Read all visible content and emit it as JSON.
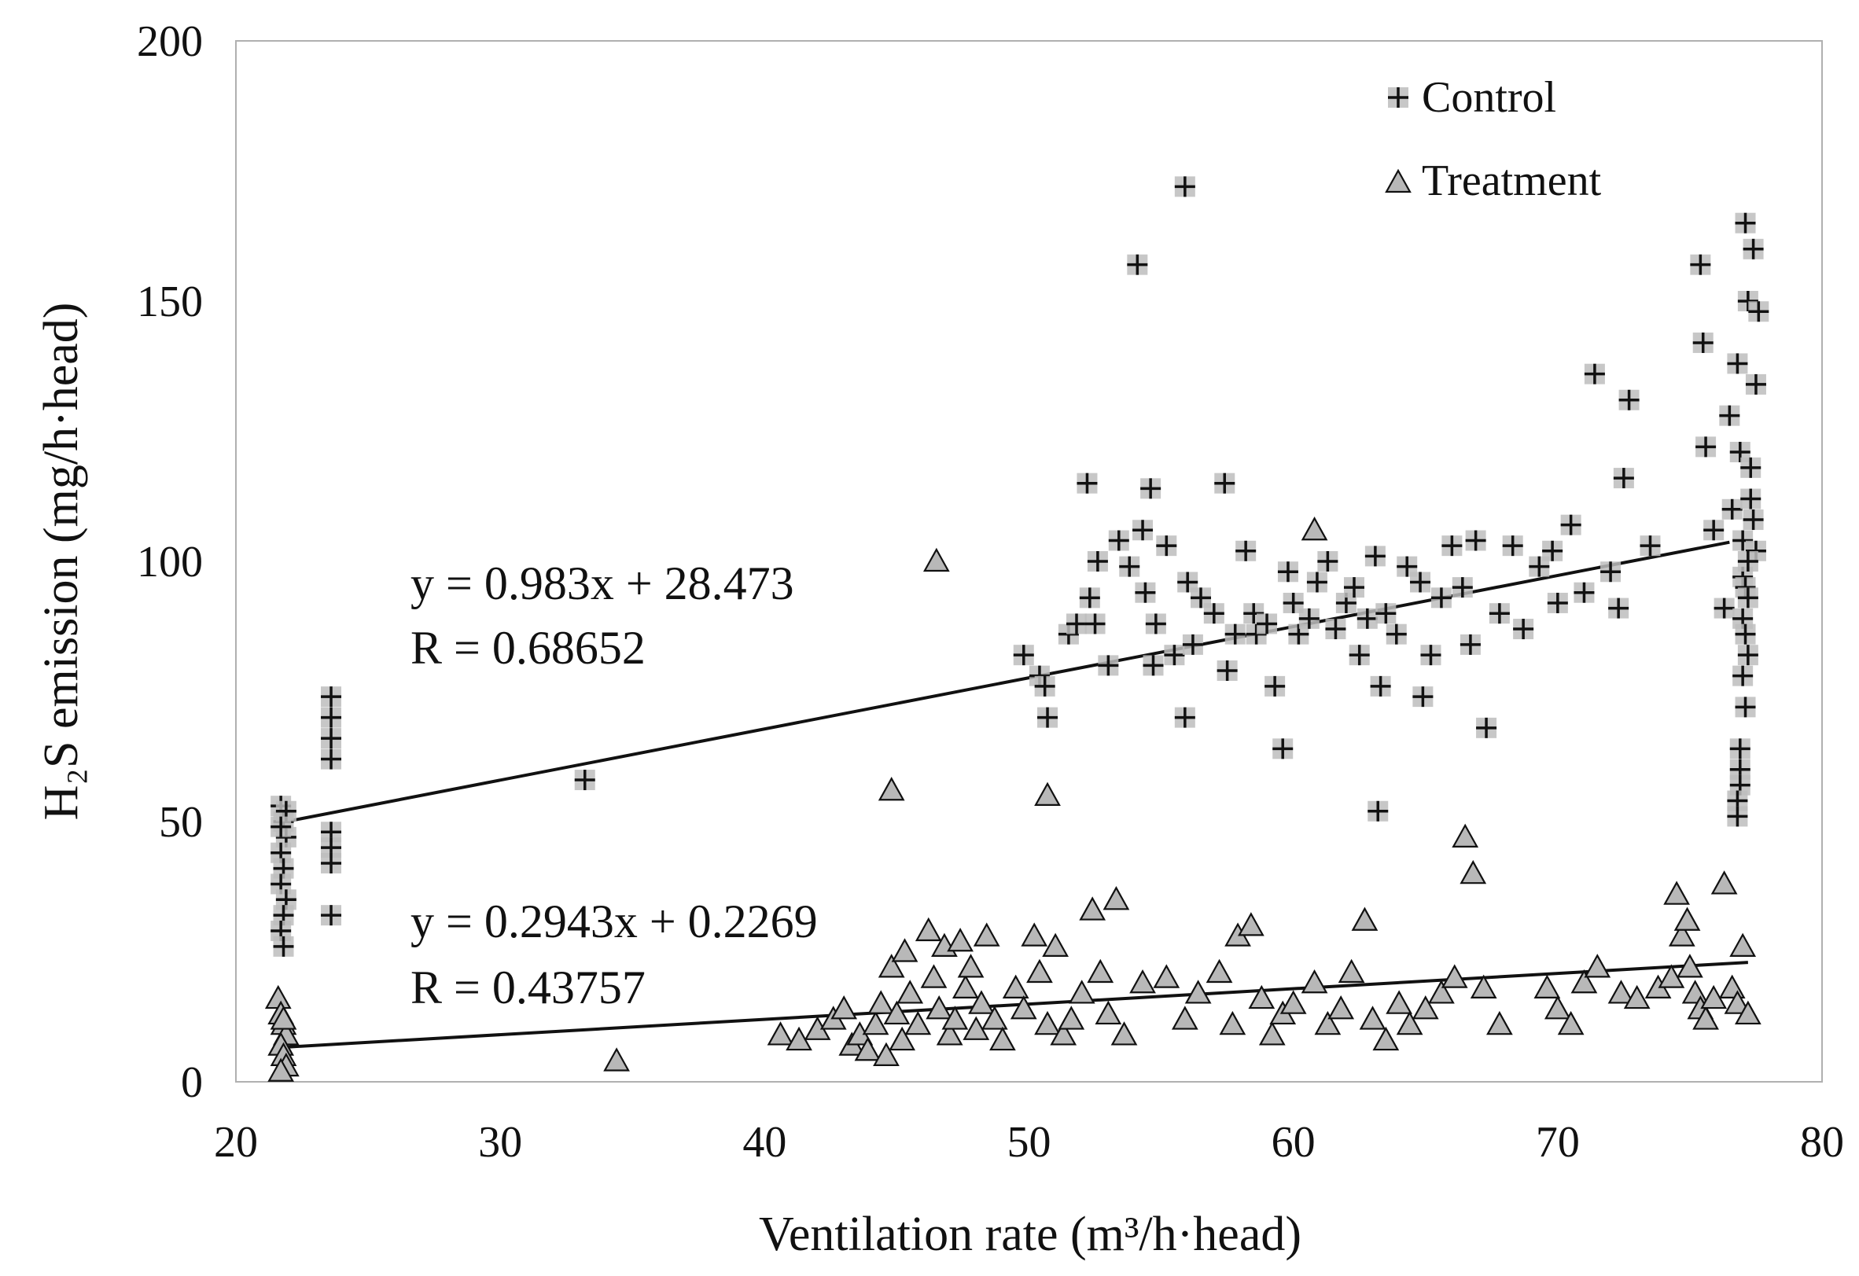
{
  "chart_data": {
    "type": "scatter",
    "title": "",
    "xlabel": "Ventilation rate (m³/h·head)",
    "ylabel": "H₂S emission (mg/h·head)",
    "xlim": [
      20,
      80
    ],
    "ylim": [
      0,
      200
    ],
    "xticks": [
      20,
      30,
      40,
      50,
      60,
      70,
      80
    ],
    "yticks": [
      0,
      50,
      100,
      150,
      200
    ],
    "grid": false,
    "legend_position": "top-right",
    "series": [
      {
        "name": "Control",
        "marker": "plus",
        "marker_color": "#111111",
        "marker_bg": "#bdbdbd",
        "points": [
          [
            21.7,
            53
          ],
          [
            21.8,
            50
          ],
          [
            21.9,
            47
          ],
          [
            21.7,
            44
          ],
          [
            21.8,
            41
          ],
          [
            21.7,
            38
          ],
          [
            21.9,
            35
          ],
          [
            21.8,
            32
          ],
          [
            21.7,
            29
          ],
          [
            21.8,
            26
          ],
          [
            21.9,
            52
          ],
          [
            21.7,
            49
          ],
          [
            23.6,
            74
          ],
          [
            23.6,
            70
          ],
          [
            23.6,
            66
          ],
          [
            23.6,
            62
          ],
          [
            23.6,
            48
          ],
          [
            23.6,
            45
          ],
          [
            23.6,
            42
          ],
          [
            23.6,
            32
          ],
          [
            33.2,
            58
          ],
          [
            49.8,
            82
          ],
          [
            50.4,
            78
          ],
          [
            50.6,
            76
          ],
          [
            50.7,
            70
          ],
          [
            51.5,
            86
          ],
          [
            51.8,
            88
          ],
          [
            52.2,
            115
          ],
          [
            52.3,
            93
          ],
          [
            52.5,
            88
          ],
          [
            52.6,
            100
          ],
          [
            53.0,
            80
          ],
          [
            53.4,
            104
          ],
          [
            53.8,
            99
          ],
          [
            54.1,
            157
          ],
          [
            54.3,
            106
          ],
          [
            54.4,
            94
          ],
          [
            54.6,
            114
          ],
          [
            54.7,
            80
          ],
          [
            54.8,
            88
          ],
          [
            55.2,
            103
          ],
          [
            55.5,
            82
          ],
          [
            55.9,
            172
          ],
          [
            55.9,
            70
          ],
          [
            56.0,
            96
          ],
          [
            56.2,
            84
          ],
          [
            56.5,
            93
          ],
          [
            57.0,
            90
          ],
          [
            57.4,
            115
          ],
          [
            57.5,
            79
          ],
          [
            57.8,
            86
          ],
          [
            58.2,
            102
          ],
          [
            58.5,
            90
          ],
          [
            58.6,
            86
          ],
          [
            59.0,
            88
          ],
          [
            59.3,
            76
          ],
          [
            59.6,
            64
          ],
          [
            59.8,
            98
          ],
          [
            60.0,
            92
          ],
          [
            60.2,
            86
          ],
          [
            60.6,
            89
          ],
          [
            60.9,
            96
          ],
          [
            61.3,
            100
          ],
          [
            61.6,
            87
          ],
          [
            62.0,
            92
          ],
          [
            62.3,
            95
          ],
          [
            62.5,
            82
          ],
          [
            62.8,
            89
          ],
          [
            63.1,
            101
          ],
          [
            63.2,
            52
          ],
          [
            63.3,
            76
          ],
          [
            63.5,
            90
          ],
          [
            63.9,
            86
          ],
          [
            64.3,
            99
          ],
          [
            64.8,
            96
          ],
          [
            64.9,
            74
          ],
          [
            65.2,
            82
          ],
          [
            65.6,
            93
          ],
          [
            66.0,
            103
          ],
          [
            66.4,
            95
          ],
          [
            66.7,
            84
          ],
          [
            66.9,
            104
          ],
          [
            67.3,
            68
          ],
          [
            67.8,
            90
          ],
          [
            68.3,
            103
          ],
          [
            68.7,
            87
          ],
          [
            69.3,
            99
          ],
          [
            69.8,
            102
          ],
          [
            70.0,
            92
          ],
          [
            70.5,
            107
          ],
          [
            71.0,
            94
          ],
          [
            71.4,
            136
          ],
          [
            72.0,
            98
          ],
          [
            72.3,
            91
          ],
          [
            72.5,
            116
          ],
          [
            72.7,
            131
          ],
          [
            73.5,
            103
          ],
          [
            75.4,
            157
          ],
          [
            75.5,
            142
          ],
          [
            75.6,
            122
          ],
          [
            75.9,
            106
          ],
          [
            76.3,
            91
          ],
          [
            76.5,
            128
          ],
          [
            76.6,
            110
          ],
          [
            76.8,
            138
          ],
          [
            76.9,
            121
          ],
          [
            77.0,
            104
          ],
          [
            77.1,
            165
          ],
          [
            77.2,
            150
          ],
          [
            77.3,
            118
          ],
          [
            77.4,
            160
          ],
          [
            77.5,
            134
          ],
          [
            77.6,
            148
          ],
          [
            77.0,
            97
          ],
          [
            77.1,
            95
          ],
          [
            77.2,
            93
          ],
          [
            77.0,
            89
          ],
          [
            77.1,
            86
          ],
          [
            77.2,
            82
          ],
          [
            77.0,
            78
          ],
          [
            77.1,
            72
          ],
          [
            76.9,
            64
          ],
          [
            76.9,
            60
          ],
          [
            76.9,
            57
          ],
          [
            76.8,
            54
          ],
          [
            76.8,
            51
          ],
          [
            77.3,
            112
          ],
          [
            77.4,
            108
          ],
          [
            77.5,
            102
          ],
          [
            77.2,
            100
          ]
        ]
      },
      {
        "name": "Treatment",
        "marker": "triangle",
        "marker_color": "#111111",
        "marker_fill": "#b8b8b8",
        "points": [
          [
            21.6,
            16
          ],
          [
            21.7,
            13
          ],
          [
            21.8,
            11
          ],
          [
            21.9,
            9
          ],
          [
            21.7,
            7
          ],
          [
            21.8,
            5
          ],
          [
            21.9,
            3
          ],
          [
            21.7,
            2
          ],
          [
            21.8,
            12
          ],
          [
            34.4,
            4
          ],
          [
            40.6,
            9
          ],
          [
            41.3,
            8
          ],
          [
            42.0,
            10
          ],
          [
            42.6,
            12
          ],
          [
            43.0,
            14
          ],
          [
            43.3,
            7
          ],
          [
            43.6,
            9
          ],
          [
            43.9,
            6
          ],
          [
            44.2,
            11
          ],
          [
            44.4,
            15
          ],
          [
            44.6,
            5
          ],
          [
            44.8,
            22
          ],
          [
            45.0,
            13
          ],
          [
            45.2,
            8
          ],
          [
            45.3,
            25
          ],
          [
            45.5,
            17
          ],
          [
            45.8,
            11
          ],
          [
            46.2,
            29
          ],
          [
            46.4,
            20
          ],
          [
            46.6,
            14
          ],
          [
            46.8,
            26
          ],
          [
            47.0,
            9
          ],
          [
            47.2,
            12
          ],
          [
            47.4,
            27
          ],
          [
            47.6,
            18
          ],
          [
            47.8,
            22
          ],
          [
            48.0,
            10
          ],
          [
            48.2,
            15
          ],
          [
            48.4,
            28
          ],
          [
            48.7,
            12
          ],
          [
            49.0,
            8
          ],
          [
            49.5,
            18
          ],
          [
            49.8,
            14
          ],
          [
            50.2,
            28
          ],
          [
            50.4,
            21
          ],
          [
            50.7,
            11
          ],
          [
            51.0,
            26
          ],
          [
            51.3,
            9
          ],
          [
            51.6,
            12
          ],
          [
            52.0,
            17
          ],
          [
            52.4,
            33
          ],
          [
            52.7,
            21
          ],
          [
            53.0,
            13
          ],
          [
            53.3,
            35
          ],
          [
            53.6,
            9
          ],
          [
            44.8,
            56
          ],
          [
            46.5,
            100
          ],
          [
            50.7,
            55
          ],
          [
            54.3,
            19
          ],
          [
            55.2,
            20
          ],
          [
            55.9,
            12
          ],
          [
            56.4,
            17
          ],
          [
            57.2,
            21
          ],
          [
            57.7,
            11
          ],
          [
            57.9,
            28
          ],
          [
            58.4,
            30
          ],
          [
            58.8,
            16
          ],
          [
            59.2,
            9
          ],
          [
            59.6,
            13
          ],
          [
            60.0,
            15
          ],
          [
            60.8,
            19
          ],
          [
            61.3,
            11
          ],
          [
            61.8,
            14
          ],
          [
            62.2,
            21
          ],
          [
            62.7,
            31
          ],
          [
            63.0,
            12
          ],
          [
            63.5,
            8
          ],
          [
            64.0,
            15
          ],
          [
            64.4,
            11
          ],
          [
            65.0,
            14
          ],
          [
            65.6,
            17
          ],
          [
            66.1,
            20
          ],
          [
            66.5,
            47
          ],
          [
            66.8,
            40
          ],
          [
            67.2,
            18
          ],
          [
            67.8,
            11
          ],
          [
            60.8,
            106
          ],
          [
            69.6,
            18
          ],
          [
            70.0,
            14
          ],
          [
            70.5,
            11
          ],
          [
            71.0,
            19
          ],
          [
            71.5,
            22
          ],
          [
            72.4,
            17
          ],
          [
            73.0,
            16
          ],
          [
            73.8,
            18
          ],
          [
            74.3,
            20
          ],
          [
            74.5,
            36
          ],
          [
            74.7,
            28
          ],
          [
            74.9,
            31
          ],
          [
            75.0,
            22
          ],
          [
            75.2,
            17
          ],
          [
            75.4,
            14
          ],
          [
            75.6,
            12
          ],
          [
            75.9,
            16
          ],
          [
            76.3,
            38
          ],
          [
            76.6,
            18
          ],
          [
            76.8,
            15
          ],
          [
            77.0,
            26
          ],
          [
            77.2,
            13
          ]
        ]
      }
    ],
    "trendlines": [
      {
        "series": "Control",
        "slope": 0.983,
        "intercept": 28.473,
        "x_range": [
          21.7,
          76.5
        ],
        "equation": "y = 0.983x + 28.473",
        "r_text": "R = 0.68652"
      },
      {
        "series": "Treatment",
        "slope": 0.2943,
        "intercept": 0.2269,
        "x_range": [
          21.7,
          77.2
        ],
        "equation": "y = 0.2943x + 0.2269",
        "r_text": "R = 0.43757"
      }
    ]
  }
}
